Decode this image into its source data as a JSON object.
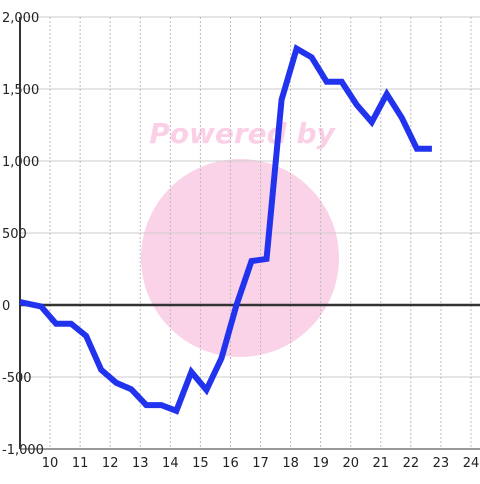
{
  "chart_data": {
    "type": "line",
    "watermark": "Powered by",
    "x": [
      9.0,
      9.7,
      10.2,
      10.7,
      11.2,
      11.7,
      12.2,
      12.7,
      13.2,
      13.7,
      14.2,
      14.7,
      15.2,
      15.7,
      16.2,
      16.7,
      17.2,
      17.7,
      18.2,
      18.7,
      19.2,
      19.7,
      20.2,
      20.7,
      21.2,
      21.7,
      22.2,
      22.7
    ],
    "series": [
      {
        "color": "#2233ee",
        "values": [
          20,
          -10,
          -130,
          -130,
          -215,
          -450,
          -540,
          -585,
          -695,
          -695,
          -735,
          -465,
          -590,
          -370,
          0,
          305,
          320,
          1425,
          1780,
          1720,
          1550,
          1550,
          1390,
          1270,
          1465,
          1300,
          1085,
          1085
        ]
      }
    ],
    "xlim": [
      9,
      24.3
    ],
    "xticks": [
      10,
      11,
      12,
      13,
      14,
      15,
      16,
      17,
      18,
      19,
      20,
      21,
      22,
      23,
      24
    ],
    "ylim": [
      -1000,
      2000
    ],
    "yticks": [
      {
        "value": -1000,
        "label": "-1,000"
      },
      -500,
      0,
      500,
      {
        "value": 1000,
        "label": "1,000"
      },
      {
        "value": 1500,
        "label": "1,500"
      },
      {
        "value": 2000,
        "label": "2,000"
      }
    ],
    "grid": true
  }
}
